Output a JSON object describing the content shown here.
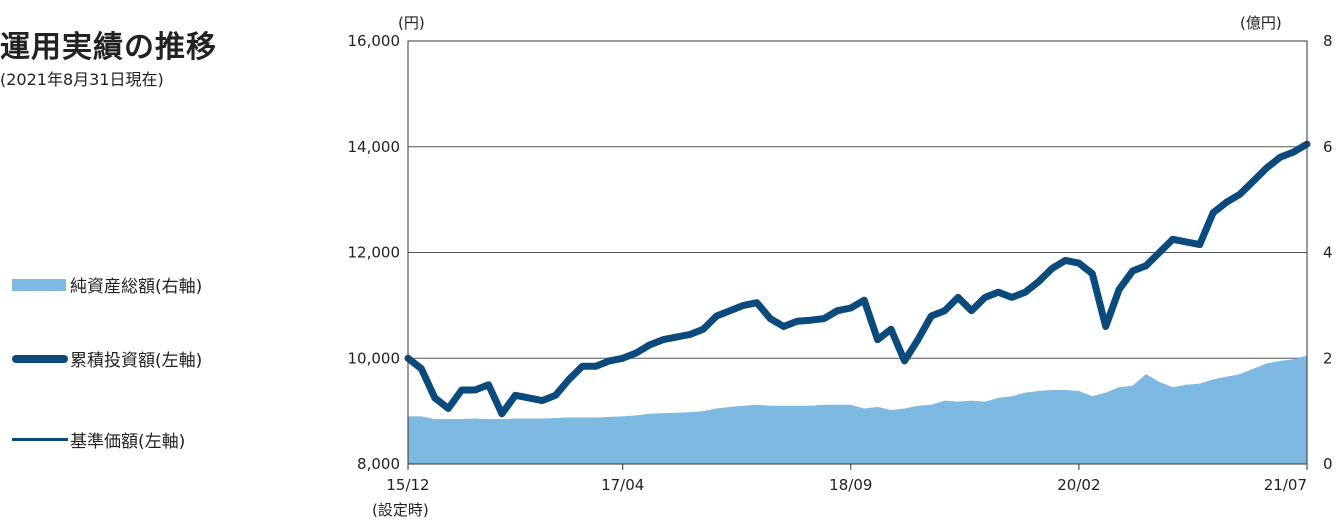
{
  "title": "運用実績の推移",
  "subtitle": "(2021年8月31日現在)",
  "legend": {
    "net_assets": "純資産総額(右軸)",
    "cumulative": "累積投資額(左軸)",
    "nav": "基準価額(左軸)"
  },
  "colors": {
    "area": "#7db9e0",
    "line": "#0b4a7c"
  },
  "chart_data": {
    "type": "line",
    "left_axis_unit": "(円)",
    "right_axis_unit": "(億円)",
    "ylim_left": [
      8000,
      16000
    ],
    "ylim_right": [
      0,
      8
    ],
    "yticks_left": [
      "8,000",
      "10,000",
      "12,000",
      "14,000",
      "16,000"
    ],
    "yticks_right": [
      "0",
      "2",
      "4",
      "6",
      "8"
    ],
    "xticks": [
      {
        "label": "15/12",
        "index": 0
      },
      {
        "label": "17/04",
        "index": 16
      },
      {
        "label": "18/09",
        "index": 33
      },
      {
        "label": "20/02",
        "index": 50
      },
      {
        "label": "21/07",
        "index": 67
      }
    ],
    "xtick_note": "(設定時)",
    "grid": true,
    "series": [
      {
        "name": "純資産総額(右軸)",
        "type": "area",
        "axis": "right",
        "values": [
          0.9,
          0.9,
          0.85,
          0.85,
          0.85,
          0.86,
          0.85,
          0.85,
          0.86,
          0.86,
          0.86,
          0.87,
          0.88,
          0.88,
          0.88,
          0.89,
          0.9,
          0.92,
          0.95,
          0.96,
          0.97,
          0.98,
          1.0,
          1.05,
          1.08,
          1.1,
          1.12,
          1.1,
          1.1,
          1.1,
          1.1,
          1.12,
          1.12,
          1.12,
          1.05,
          1.08,
          1.02,
          1.05,
          1.1,
          1.12,
          1.2,
          1.18,
          1.2,
          1.18,
          1.25,
          1.28,
          1.35,
          1.38,
          1.4,
          1.4,
          1.38,
          1.28,
          1.35,
          1.45,
          1.48,
          1.7,
          1.55,
          1.45,
          1.5,
          1.52,
          1.6,
          1.65,
          1.7,
          1.8,
          1.9,
          1.95,
          1.98,
          2.05
        ]
      },
      {
        "name": "累積投資額(左軸)",
        "type": "line",
        "axis": "left",
        "values": [
          10000,
          9800,
          9250,
          9050,
          9400,
          9400,
          9500,
          8950,
          9300,
          9250,
          9200,
          9300,
          9600,
          9850,
          9850,
          9950,
          10000,
          10100,
          10250,
          10350,
          10400,
          10450,
          10550,
          10800,
          10900,
          11000,
          11050,
          10750,
          10600,
          10700,
          10720,
          10750,
          10900,
          10950,
          11100,
          10350,
          10550,
          9950,
          10350,
          10800,
          10900,
          11150,
          10900,
          11150,
          11250,
          11150,
          11250,
          11450,
          11700,
          11850,
          11800,
          11600,
          10600,
          11300,
          11650,
          11750,
          12000,
          12250,
          12200,
          12150,
          12750,
          12950,
          13100,
          13350,
          13600,
          13800,
          13900,
          14050
        ]
      }
    ]
  }
}
